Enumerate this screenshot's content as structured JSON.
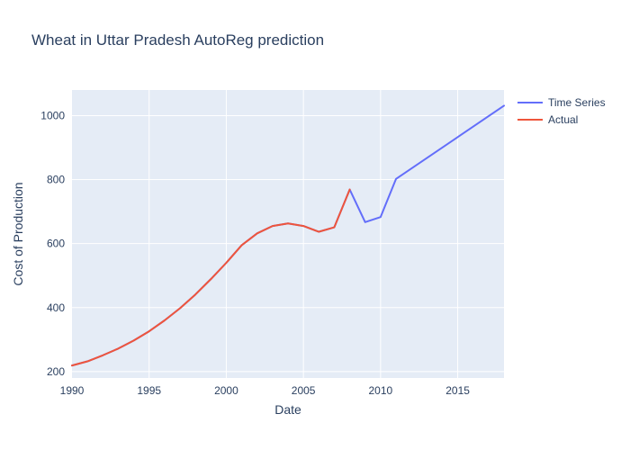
{
  "chart_data": {
    "type": "line",
    "title": "Wheat in Uttar Pradesh AutoReg prediction",
    "xlabel": "Date",
    "ylabel": "Cost of Production",
    "xlim": [
      1990,
      2018
    ],
    "ylim": [
      180,
      1080
    ],
    "x_ticks": [
      "1990",
      "1995",
      "2000",
      "2005",
      "2010",
      "2015"
    ],
    "y_ticks": [
      "200",
      "400",
      "600",
      "800",
      "1000"
    ],
    "grid": true,
    "legend_position": "top-right",
    "plot_background": "#e5ecf6",
    "series": [
      {
        "name": "Time Series",
        "color": "#636efa",
        "x": [
          1990,
          1991,
          1992,
          1993,
          1994,
          1995,
          1996,
          1997,
          1998,
          1999,
          2000,
          2001,
          2002,
          2003,
          2004,
          2005,
          2006,
          2007,
          2008,
          2009,
          2010,
          2011,
          2018
        ],
        "y": [
          219,
          232,
          251,
          272,
          297,
          326,
          360,
          398,
          441,
          489,
          540,
          595,
          632,
          655,
          663,
          655,
          637,
          651,
          769,
          667,
          683,
          802,
          1031
        ]
      },
      {
        "name": "Actual",
        "color": "#ef553b",
        "x": [
          1990,
          1991,
          1992,
          1993,
          1994,
          1995,
          1996,
          1997,
          1998,
          1999,
          2000,
          2001,
          2002,
          2003,
          2004,
          2005,
          2006,
          2007,
          2008
        ],
        "y": [
          219,
          232,
          251,
          272,
          297,
          326,
          360,
          398,
          441,
          489,
          540,
          595,
          632,
          655,
          663,
          655,
          637,
          651,
          769
        ]
      }
    ]
  }
}
